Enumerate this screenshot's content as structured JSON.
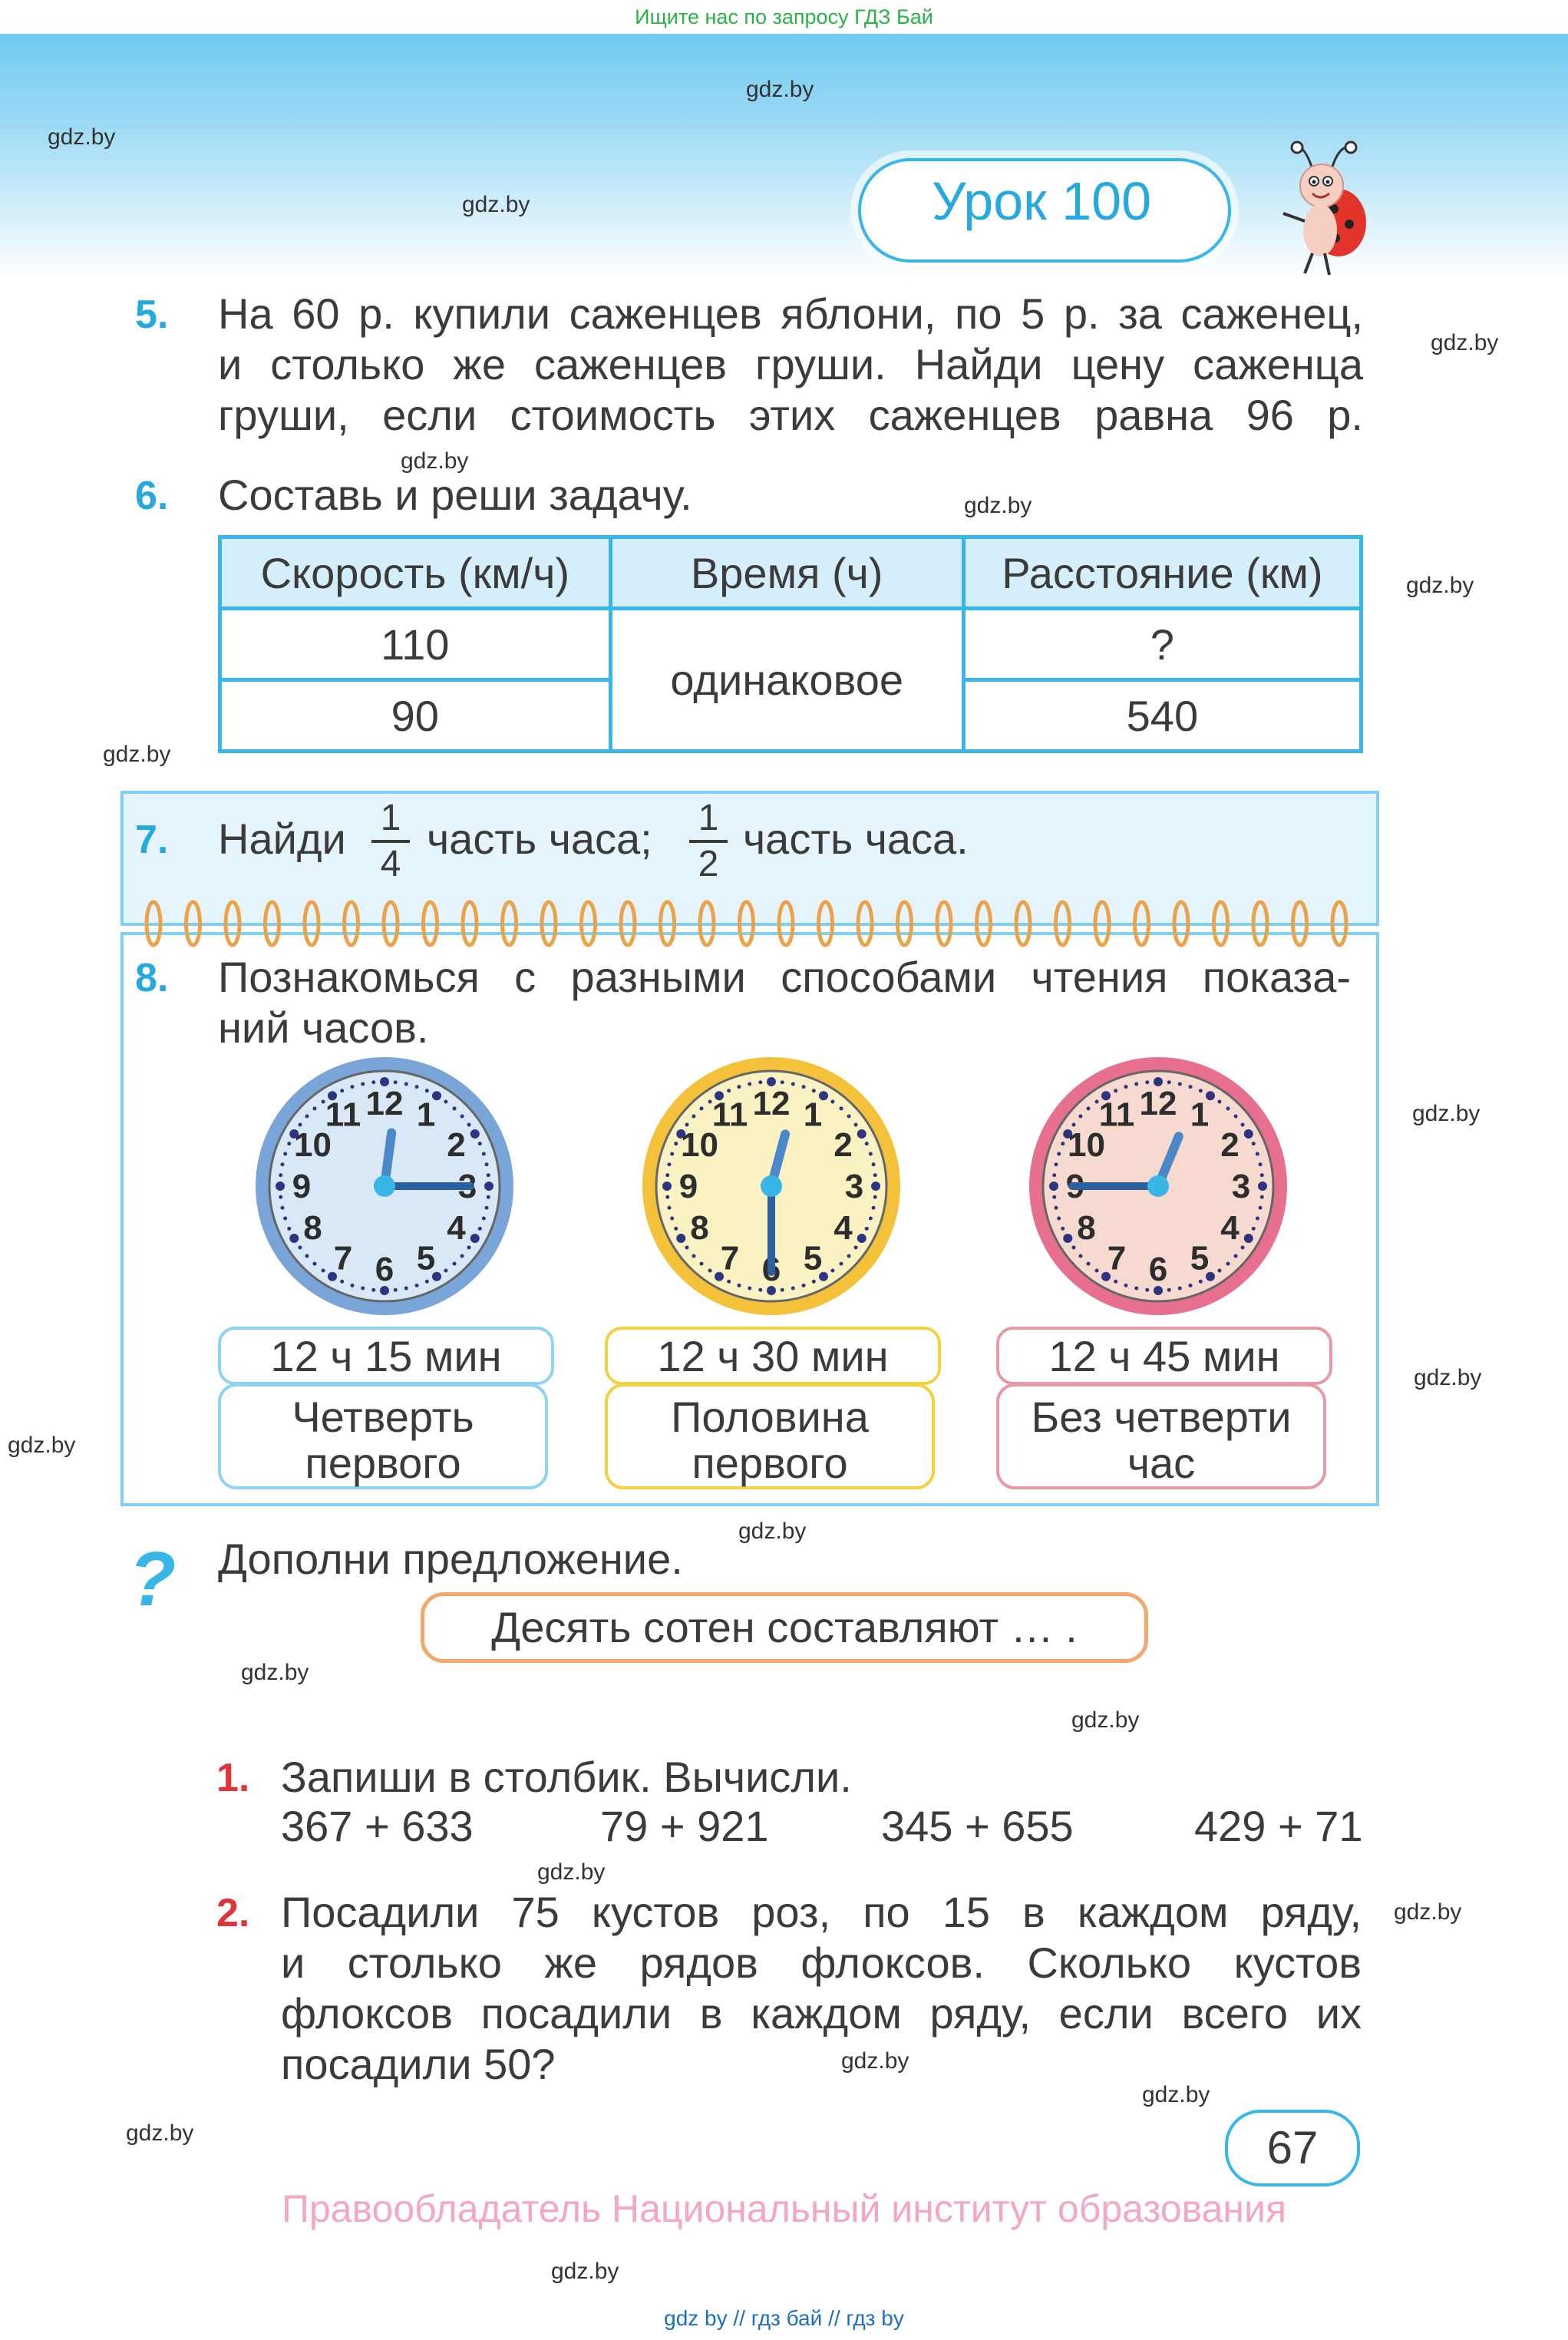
{
  "banner": {
    "text": "Ищите нас по запросу ГДЗ Бай"
  },
  "watermark": "gdz.by",
  "lesson": {
    "title": "Урок 100"
  },
  "task5": {
    "number": "5.",
    "lines": [
      "На 60 р. купили саженцев яблони, по 5 р. за саженец,",
      "и столько же саженцев груши. Найди цену саженца",
      "груши, если стоимость этих саженцев равна 96 р."
    ]
  },
  "task6": {
    "number": "6.",
    "text": "Составь и реши задачу.",
    "table": {
      "headers": [
        "Скорость (км/ч)",
        "Время (ч)",
        "Расстояние (км)"
      ],
      "speeds": [
        "110",
        "90"
      ],
      "time": "одинаковое",
      "distances": [
        "?",
        "540"
      ]
    }
  },
  "task7": {
    "number": "7.",
    "word1": "Найди",
    "frac1": {
      "num": "1",
      "den": "4"
    },
    "part1": "часть часа;",
    "frac2": {
      "num": "1",
      "den": "2"
    },
    "part2": "часть часа."
  },
  "task8": {
    "number": "8.",
    "lines": [
      "Познакомься с разными способами чтения показа-",
      "ний часов."
    ],
    "clocks": [
      {
        "time": "12 ч 15 мин",
        "name_line1": "Четверть",
        "name_line2": "первого",
        "accent": "#7aa5d8",
        "face": "#d8e8f7",
        "border": "#8fd3f2",
        "hour": 12.25,
        "minute": 15
      },
      {
        "time": "12 ч 30 мин",
        "name_line1": "Половина",
        "name_line2": "первого",
        "accent": "#f3c23a",
        "face": "#fbf2c4",
        "border": "#f2d23e",
        "hour": 12.5,
        "minute": 30
      },
      {
        "time": "12 ч 45 мин",
        "name_line1": "Без четверти",
        "name_line2": "час",
        "accent": "#e8708f",
        "face": "#f6d9cf",
        "border": "#e79aa5",
        "hour": 12.75,
        "minute": 45
      }
    ]
  },
  "question": {
    "text": "Дополни предложение.",
    "sentence": "Десять сотен составляют … ."
  },
  "home1": {
    "number": "1.",
    "text": "Запиши в столбик. Вычисли.",
    "exprs": [
      "367 + 633",
      "79 + 921",
      "345 + 655",
      "429 + 71"
    ]
  },
  "home2": {
    "number": "2.",
    "lines": [
      "Посадили 75 кустов роз, по 15 в каждом ряду,",
      "и столько же рядов флоксов. Сколько кустов",
      "флоксов посадили в каждом ряду, если всего их",
      "посадили 50?"
    ]
  },
  "page_number": "67",
  "copyright": "Правообладатель Национальный институт образования",
  "bottom_links": "gdz by  //  гдз бай  //  гдз by",
  "colors": {
    "accent": "#27a9de",
    "red": "#e0343a",
    "pink": "#f3a6c6"
  }
}
